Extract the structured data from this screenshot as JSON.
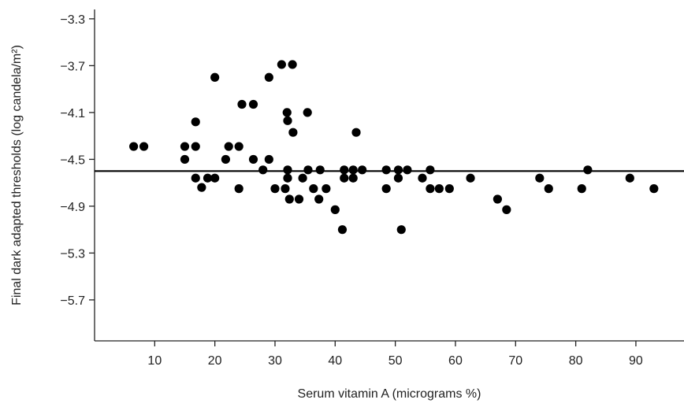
{
  "chart_data": {
    "type": "scatter",
    "xlabel": "Serum vitamin A (micrograms %)",
    "ylabel": "Final dark adapted thresholds (log candela/m²)",
    "xlim": [
      0,
      98
    ],
    "ylim": [
      -6.05,
      -3.22
    ],
    "x_ticks": [
      10,
      20,
      30,
      40,
      50,
      60,
      70,
      80,
      90
    ],
    "y_ticks": [
      -3.3,
      -3.7,
      -4.1,
      -4.5,
      -4.9,
      -5.3,
      -5.7
    ],
    "x_tick_labels": [
      "10",
      "20",
      "30",
      "40",
      "50",
      "60",
      "70",
      "80",
      "90"
    ],
    "y_tick_labels": [
      "−3.3",
      "−3.7",
      "−4.1",
      "−4.5",
      "−4.9",
      "−5.3",
      "−5.7"
    ],
    "grid": false,
    "regression_line": {
      "x": [
        0,
        98
      ],
      "y": [
        -4.6,
        -4.6
      ]
    },
    "points": [
      [
        6.5,
        -4.39
      ],
      [
        8.2,
        -4.39
      ],
      [
        15.0,
        -4.39
      ],
      [
        15.0,
        -4.5
      ],
      [
        16.8,
        -4.18
      ],
      [
        16.8,
        -4.39
      ],
      [
        16.8,
        -4.66
      ],
      [
        17.8,
        -4.74
      ],
      [
        18.8,
        -4.66
      ],
      [
        20.0,
        -4.66
      ],
      [
        20.0,
        -3.8
      ],
      [
        21.8,
        -4.5
      ],
      [
        22.3,
        -4.39
      ],
      [
        24.0,
        -4.39
      ],
      [
        24.0,
        -4.75
      ],
      [
        24.5,
        -4.03
      ],
      [
        26.4,
        -4.03
      ],
      [
        26.4,
        -4.5
      ],
      [
        28.0,
        -4.59
      ],
      [
        29.0,
        -3.8
      ],
      [
        29.0,
        -4.5
      ],
      [
        30.0,
        -4.75
      ],
      [
        31.1,
        -3.69
      ],
      [
        31.7,
        -4.75
      ],
      [
        32.0,
        -4.1
      ],
      [
        32.1,
        -4.17
      ],
      [
        32.1,
        -4.59
      ],
      [
        32.1,
        -4.66
      ],
      [
        32.4,
        -4.84
      ],
      [
        32.9,
        -3.69
      ],
      [
        33.0,
        -4.27
      ],
      [
        34.0,
        -4.84
      ],
      [
        34.6,
        -4.66
      ],
      [
        35.4,
        -4.1
      ],
      [
        35.5,
        -4.59
      ],
      [
        36.4,
        -4.75
      ],
      [
        37.3,
        -4.84
      ],
      [
        37.5,
        -4.59
      ],
      [
        38.5,
        -4.75
      ],
      [
        40.0,
        -4.93
      ],
      [
        41.2,
        -5.1
      ],
      [
        41.5,
        -4.59
      ],
      [
        41.5,
        -4.66
      ],
      [
        43.0,
        -4.59
      ],
      [
        43.0,
        -4.66
      ],
      [
        43.5,
        -4.27
      ],
      [
        44.5,
        -4.59
      ],
      [
        48.5,
        -4.59
      ],
      [
        48.5,
        -4.75
      ],
      [
        50.5,
        -4.59
      ],
      [
        50.5,
        -4.66
      ],
      [
        51.0,
        -5.1
      ],
      [
        52.0,
        -4.59
      ],
      [
        54.5,
        -4.66
      ],
      [
        55.8,
        -4.59
      ],
      [
        55.8,
        -4.75
      ],
      [
        57.3,
        -4.75
      ],
      [
        59.0,
        -4.75
      ],
      [
        62.5,
        -4.66
      ],
      [
        67.0,
        -4.84
      ],
      [
        68.5,
        -4.93
      ],
      [
        74.0,
        -4.66
      ],
      [
        75.5,
        -4.75
      ],
      [
        81.0,
        -4.75
      ],
      [
        82.0,
        -4.59
      ],
      [
        89.0,
        -4.66
      ],
      [
        93.0,
        -4.75
      ]
    ]
  }
}
